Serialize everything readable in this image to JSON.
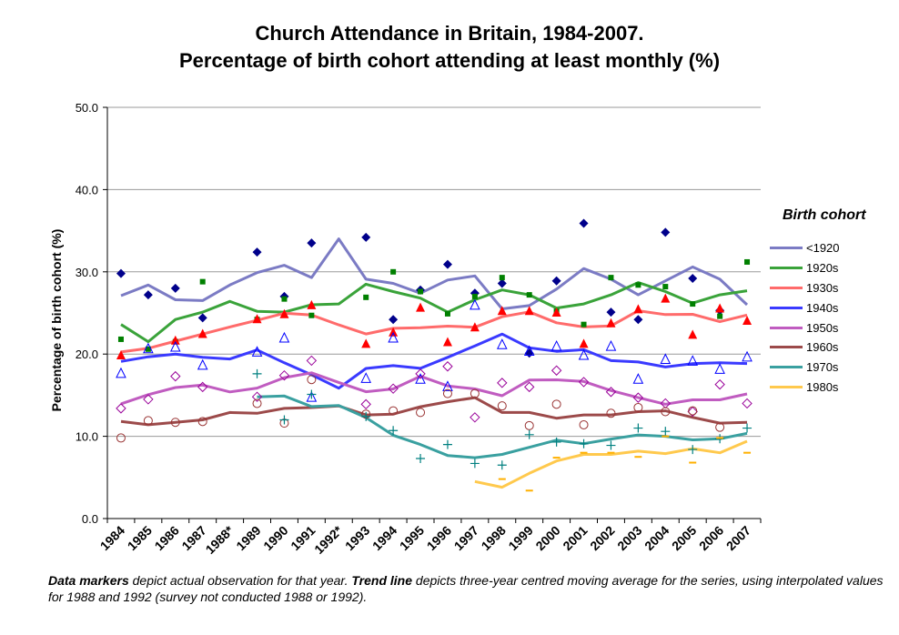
{
  "header": {
    "title_line1": "Church Attendance in Britain, 1984-2007.",
    "title_line2": "Percentage of birth cohort attending at least monthly (%)"
  },
  "footnote": {
    "bold1": "Data markers",
    "text1": " depict actual observation for that year. ",
    "bold2": "Trend line",
    "text2": " depicts three-year centred moving average for the series, using interpolated values for 1988 and 1992 (survey not conducted 1988 or 1992)."
  },
  "chart_data": {
    "type": "line",
    "title": "Church Attendance in Britain, 1984-2007. Percentage of birth cohort attending at least monthly (%)",
    "xlabel": "",
    "ylabel": "Percentage of birth cohort (%)",
    "ylim": [
      0,
      50
    ],
    "yticks": [
      "0.0",
      "10.0",
      "20.0",
      "30.0",
      "40.0",
      "50.0"
    ],
    "categories": [
      "1984",
      "1985",
      "1986",
      "1987",
      "1988*",
      "1989",
      "1990",
      "1991",
      "1992*",
      "1993",
      "1994",
      "1995",
      "1996",
      "1997",
      "1998",
      "1999",
      "2000",
      "2001",
      "2002",
      "2003",
      "2004",
      "2005",
      "2006",
      "2007"
    ],
    "grid": "horizontal",
    "legend_title": "Birth cohort",
    "legend_position": "right",
    "series": [
      {
        "name": "<1920",
        "color": "#00008B",
        "trend_color": "#7B7BC4",
        "marker": "diamond",
        "observed": [
          29.8,
          27.2,
          28.0,
          24.4,
          null,
          32.4,
          27.0,
          33.5,
          null,
          34.2,
          24.2,
          27.8,
          30.9,
          27.4,
          28.6,
          20.1,
          28.9,
          35.9,
          25.1,
          24.2,
          34.8,
          29.2,
          25.3,
          null
        ],
        "trend": [
          27.1,
          28.4,
          26.6,
          26.5,
          28.4,
          29.9,
          30.8,
          29.3,
          34.0,
          29.1,
          28.6,
          27.4,
          29.0,
          29.5,
          25.5,
          25.9,
          27.9,
          30.4,
          29.1,
          27.2,
          28.9,
          30.6,
          29.1,
          26.0
        ]
      },
      {
        "name": "1920s",
        "color": "#008000",
        "trend_color": "#3AA33A",
        "marker": "square",
        "observed": [
          21.8,
          20.6,
          21.5,
          28.8,
          null,
          24.2,
          26.7,
          24.7,
          null,
          26.9,
          30.0,
          27.6,
          24.9,
          27.0,
          29.3,
          27.2,
          25.2,
          23.6,
          29.3,
          28.4,
          28.2,
          26.1,
          24.6,
          31.2
        ],
        "trend": [
          23.6,
          21.5,
          24.2,
          25.1,
          26.4,
          25.2,
          25.1,
          26.0,
          26.1,
          28.5,
          27.6,
          26.8,
          25.1,
          26.6,
          27.8,
          27.2,
          25.6,
          26.1,
          27.2,
          28.7,
          27.6,
          26.2,
          27.2,
          27.7
        ]
      },
      {
        "name": "1930s",
        "color": "#FF0000",
        "trend_color": "#FF6B6B",
        "marker": "triangle",
        "observed": [
          19.8,
          null,
          21.6,
          22.4,
          null,
          24.2,
          24.8,
          25.9,
          null,
          21.2,
          22.6,
          25.6,
          21.4,
          23.2,
          25.2,
          25.2,
          25.0,
          21.2,
          23.7,
          25.4,
          26.7,
          22.3,
          25.5,
          24.0
        ]
      },
      {
        "name": "1940s",
        "color": "#0000FF",
        "trend_color": "#3A3AFF",
        "marker": "triangle-open",
        "observed": [
          17.6,
          20.6,
          20.8,
          18.6,
          null,
          20.2,
          21.9,
          14.7,
          null,
          17.0,
          21.9,
          16.9,
          16.0,
          25.9,
          21.1,
          20.3,
          20.9,
          19.8,
          20.9,
          16.9,
          19.3,
          19.1,
          18.1,
          19.6
        ]
      },
      {
        "name": "1950s",
        "color": "#990099",
        "trend_color": "#C05CC0",
        "marker": "diamond-open",
        "observed": [
          13.4,
          14.5,
          17.3,
          16.0,
          null,
          14.8,
          17.4,
          19.2,
          null,
          13.9,
          15.8,
          17.6,
          18.5,
          12.3,
          16.5,
          16.0,
          18.0,
          16.6,
          15.4,
          14.7,
          14.0,
          13.0,
          16.3,
          14.0
        ]
      },
      {
        "name": "1960s",
        "color": "#993333",
        "trend_color": "#9C4A4A",
        "marker": "circle-open",
        "observed": [
          9.8,
          11.9,
          11.7,
          11.8,
          null,
          14.0,
          11.6,
          16.9,
          null,
          12.7,
          13.1,
          12.9,
          15.2,
          15.2,
          13.7,
          11.3,
          13.9,
          11.4,
          12.8,
          13.5,
          13.0,
          13.1,
          11.1,
          null
        ],
        "trend": [
          11.8,
          11.4,
          11.7,
          12.0,
          12.9,
          12.8,
          13.4,
          13.5,
          13.7,
          12.6,
          12.7,
          13.6,
          14.2,
          14.7,
          12.9,
          12.9,
          12.2,
          12.6,
          12.6,
          13.0,
          13.1,
          12.3,
          11.6,
          11.7
        ]
      },
      {
        "name": "1970s",
        "color": "#008080",
        "trend_color": "#3AA0A0",
        "marker": "plus",
        "observed": [
          null,
          null,
          null,
          null,
          null,
          17.6,
          12.0,
          15.1,
          null,
          12.4,
          10.7,
          7.3,
          9.0,
          6.7,
          6.5,
          10.2,
          9.3,
          9.1,
          8.9,
          11.0,
          10.6,
          8.4,
          9.7,
          11.0
        ]
      },
      {
        "name": "1980s",
        "color": "#FFB000",
        "trend_color": "#FFC94D",
        "marker": "dash",
        "observed": [
          null,
          null,
          null,
          null,
          null,
          null,
          null,
          null,
          null,
          null,
          null,
          null,
          null,
          null,
          4.8,
          3.4,
          7.4,
          8.0,
          8.0,
          7.5,
          10.0,
          6.8,
          9.8,
          8.0
        ],
        "trend": [
          null,
          null,
          null,
          null,
          null,
          null,
          null,
          null,
          null,
          null,
          null,
          null,
          null,
          4.5,
          3.8,
          5.5,
          7.0,
          7.8,
          7.8,
          8.2,
          7.9,
          8.5,
          8.0,
          9.4
        ]
      }
    ]
  }
}
